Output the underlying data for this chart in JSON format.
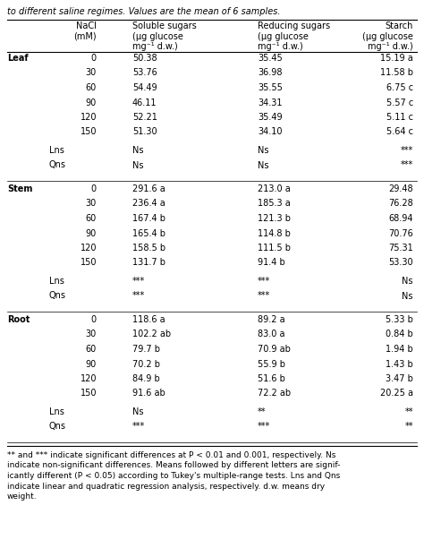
{
  "title_text": "to different saline regimes. Values are the mean of 6 samples.",
  "sections": [
    {
      "label": "Leaf",
      "rows": [
        [
          "0",
          "50.38",
          "35.45",
          "15.19 a"
        ],
        [
          "30",
          "53.76",
          "36.98",
          "11.58 b"
        ],
        [
          "60",
          "54.49",
          "35.55",
          "6.75 c"
        ],
        [
          "90",
          "46.11",
          "34.31",
          "5.57 c"
        ],
        [
          "120",
          "52.21",
          "35.49",
          "5.11 c"
        ],
        [
          "150",
          "51.30",
          "34.10",
          "5.64 c"
        ]
      ],
      "stat_rows": [
        [
          "Lns",
          "Ns",
          "Ns",
          "***"
        ],
        [
          "Qns",
          "Ns",
          "Ns",
          "***"
        ]
      ]
    },
    {
      "label": "Stem",
      "rows": [
        [
          "0",
          "291.6 a",
          "213.0 a",
          "29.48"
        ],
        [
          "30",
          "236.4 a",
          "185.3 a",
          "76.28"
        ],
        [
          "60",
          "167.4 b",
          "121.3 b",
          "68.94"
        ],
        [
          "90",
          "165.4 b",
          "114.8 b",
          "70.76"
        ],
        [
          "120",
          "158.5 b",
          "111.5 b",
          "75.31"
        ],
        [
          "150",
          "131.7 b",
          "91.4 b",
          "53.30"
        ]
      ],
      "stat_rows": [
        [
          "Lns",
          "***",
          "***",
          "Ns"
        ],
        [
          "Qns",
          "***",
          "***",
          "Ns"
        ]
      ]
    },
    {
      "label": "Root",
      "rows": [
        [
          "0",
          "118.6 a",
          "89.2 a",
          "5.33 b"
        ],
        [
          "30",
          "102.2 ab",
          "83.0 a",
          "0.84 b"
        ],
        [
          "60",
          "79.7 b",
          "70.9 ab",
          "1.94 b"
        ],
        [
          "90",
          "70.2 b",
          "55.9 b",
          "1.43 b"
        ],
        [
          "120",
          "84.9 b",
          "51.6 b",
          "3.47 b"
        ],
        [
          "150",
          "91.6 ab",
          "72.2 ab",
          "20.25 a"
        ]
      ],
      "stat_rows": [
        [
          "Lns",
          "Ns",
          "**",
          "**"
        ],
        [
          "Qns",
          "***",
          "***",
          "**"
        ]
      ]
    }
  ],
  "bg_color": "#ffffff",
  "text_color": "#000000",
  "font_size": 7.0,
  "footnote_font_size": 6.5
}
